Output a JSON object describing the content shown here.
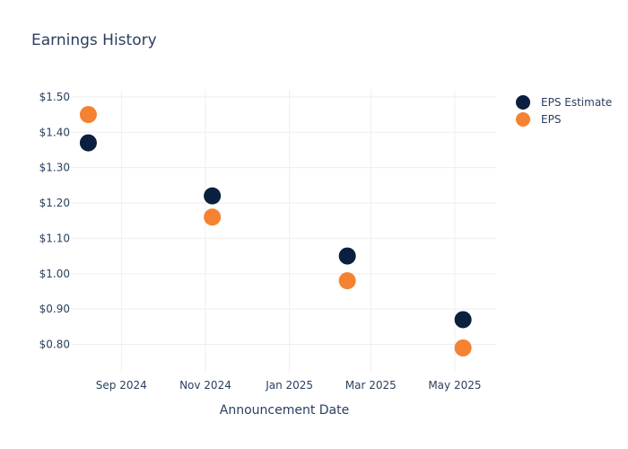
{
  "chart_data": {
    "type": "scatter",
    "title": "Earnings History",
    "xlabel": "Announcement Date",
    "ylabel": "",
    "x_ticks": [
      {
        "date": "2024-09-01",
        "label": "Sep 2024"
      },
      {
        "date": "2024-11-01",
        "label": "Nov 2024"
      },
      {
        "date": "2025-01-01",
        "label": "Jan 2025"
      },
      {
        "date": "2025-03-01",
        "label": "Mar 2025"
      },
      {
        "date": "2025-05-01",
        "label": "May 2025"
      }
    ],
    "y_ticks": [
      {
        "value": 0.8,
        "label": "$0.80"
      },
      {
        "value": 0.9,
        "label": "$0.90"
      },
      {
        "value": 1.0,
        "label": "$1.00"
      },
      {
        "value": 1.1,
        "label": "$1.10"
      },
      {
        "value": 1.2,
        "label": "$1.20"
      },
      {
        "value": 1.3,
        "label": "$1.30"
      },
      {
        "value": 1.4,
        "label": "$1.40"
      },
      {
        "value": 1.5,
        "label": "$1.50"
      }
    ],
    "xlim": [
      "2024-07-27",
      "2025-05-31"
    ],
    "ylim": [
      0.72,
      1.52
    ],
    "grid": true,
    "legend_position": "top-right",
    "series": [
      {
        "name": "EPS Estimate",
        "color": "#0b1f3f",
        "points": [
          {
            "x": "2024-08-08",
            "y": 1.37
          },
          {
            "x": "2024-11-06",
            "y": 1.22
          },
          {
            "x": "2025-02-12",
            "y": 1.05
          },
          {
            "x": "2025-05-07",
            "y": 0.87
          }
        ]
      },
      {
        "name": "EPS",
        "color": "#f58232",
        "points": [
          {
            "x": "2024-08-08",
            "y": 1.45
          },
          {
            "x": "2024-11-06",
            "y": 1.16
          },
          {
            "x": "2025-02-12",
            "y": 0.98
          },
          {
            "x": "2025-05-07",
            "y": 0.79
          }
        ]
      }
    ]
  }
}
